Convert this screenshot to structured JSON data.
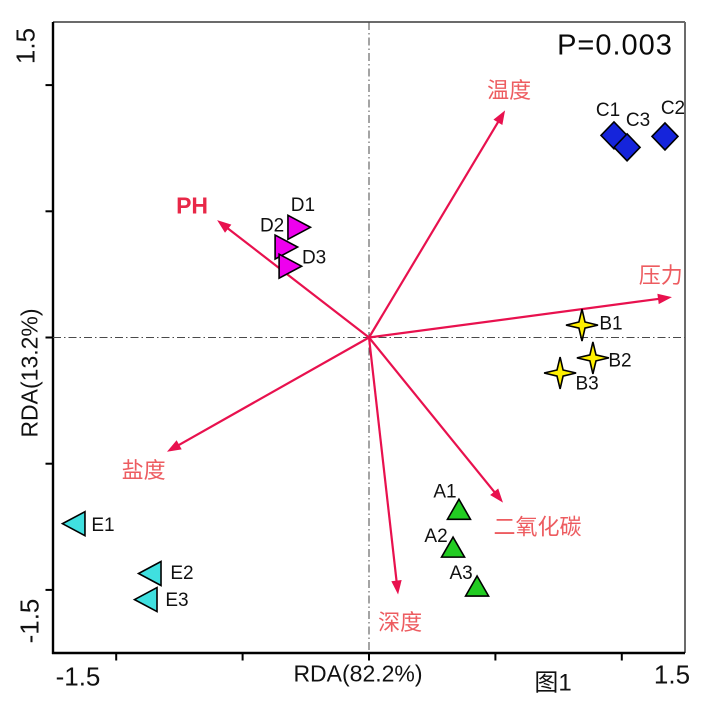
{
  "chart_data": {
    "type": "scatter",
    "xlabel": "RDA(82.2%)",
    "ylabel": "RDA(13.2%)",
    "xlim": [
      -1.5,
      1.5
    ],
    "ylim": [
      -1.5,
      1.5
    ],
    "tick_step": 0.6,
    "grid": false,
    "crosshair_at_zero": true,
    "end_tick_labels": {
      "x_min": "-1.5",
      "x_max": "1.5",
      "y_min": "-1.5",
      "y_max": "1.5"
    },
    "annotations": {
      "p_value": "P=0.003",
      "caption": "图1"
    },
    "arrows": [
      {
        "name": "temperature",
        "label": "温度",
        "x": 0.646,
        "y": 1.08,
        "label_x": 0.665,
        "label_y": 1.175,
        "bold": false
      },
      {
        "name": "pressure",
        "label": "压力",
        "x": 1.438,
        "y": 0.192,
        "label_x": 1.385,
        "label_y": 0.295,
        "bold": false
      },
      {
        "name": "ph",
        "label": "PH",
        "x": -0.721,
        "y": 0.558,
        "label_x": -0.84,
        "label_y": 0.628,
        "bold": true
      },
      {
        "name": "salinity",
        "label": "盐度",
        "x": -0.959,
        "y": -0.543,
        "label_x": -1.07,
        "label_y": -0.632,
        "bold": false
      },
      {
        "name": "depth",
        "label": "深度",
        "x": 0.138,
        "y": -1.222,
        "label_x": 0.148,
        "label_y": -1.355,
        "bold": false
      },
      {
        "name": "co2",
        "label": "二氧化碳",
        "x": 0.636,
        "y": -0.785,
        "label_x": 0.8,
        "label_y": -0.902,
        "bold": false
      }
    ],
    "series": [
      {
        "name": "A",
        "marker": "triangle-up",
        "fill": "#22CC22",
        "points": [
          {
            "label": "A1",
            "x": 0.427,
            "y": -0.819,
            "ldx": -14,
            "ldy": -18
          },
          {
            "label": "A2",
            "x": 0.399,
            "y": -0.999,
            "ldx": -17,
            "ldy": -11
          },
          {
            "label": "A3",
            "x": 0.513,
            "y": -1.184,
            "ldx": -16,
            "ldy": -13
          }
        ]
      },
      {
        "name": "B",
        "marker": "star4",
        "fill": "#FFF000",
        "points": [
          {
            "label": "B1",
            "x": 1.011,
            "y": 0.059,
            "ldx": 29,
            "ldy": -1
          },
          {
            "label": "B2",
            "x": 1.063,
            "y": -0.097,
            "ldx": 27,
            "ldy": 3
          },
          {
            "label": "B3",
            "x": 0.907,
            "y": -0.169,
            "ldx": 27,
            "ldy": 11
          }
        ]
      },
      {
        "name": "C",
        "marker": "diamond",
        "fill": "#1524DB",
        "points": [
          {
            "label": "C1",
            "x": 1.163,
            "y": 0.961,
            "ldx": -6,
            "ldy": -25
          },
          {
            "label": "C3",
            "x": 1.225,
            "y": 0.904,
            "ldx": 11,
            "ldy": -27
          },
          {
            "label": "C2",
            "x": 1.405,
            "y": 0.956,
            "ldx": 8,
            "ldy": -28
          }
        ]
      },
      {
        "name": "D",
        "marker": "triangle-right",
        "fill": "#EE00EE",
        "points": [
          {
            "label": "D1",
            "x": -0.342,
            "y": 0.524,
            "ldx": 6,
            "ldy": -22
          },
          {
            "label": "D2",
            "x": -0.403,
            "y": 0.43,
            "ldx": -12,
            "ldy": -21
          },
          {
            "label": "D3",
            "x": -0.384,
            "y": 0.339,
            "ldx": 26,
            "ldy": -8
          }
        ]
      },
      {
        "name": "E",
        "marker": "triangle-left",
        "fill": "#40E0E0",
        "points": [
          {
            "label": "E1",
            "x": -1.391,
            "y": -0.885,
            "ldx": 27,
            "ldy": 2
          },
          {
            "label": "E2",
            "x": -1.03,
            "y": -1.122,
            "ldx": 30,
            "ldy": 0
          },
          {
            "label": "E3",
            "x": -1.049,
            "y": -1.246,
            "ldx": 29,
            "ldy": 1
          }
        ]
      }
    ],
    "colors": {
      "arrow": "#E8114E",
      "arrow_label": "#ED5C60",
      "ph_label": "#E82848",
      "frame_gray": "#6B6B6B",
      "axis_black": "#000000",
      "crosshair": "#4A4A4A",
      "marker_stroke": "#000000",
      "point_label": "#111111"
    }
  }
}
